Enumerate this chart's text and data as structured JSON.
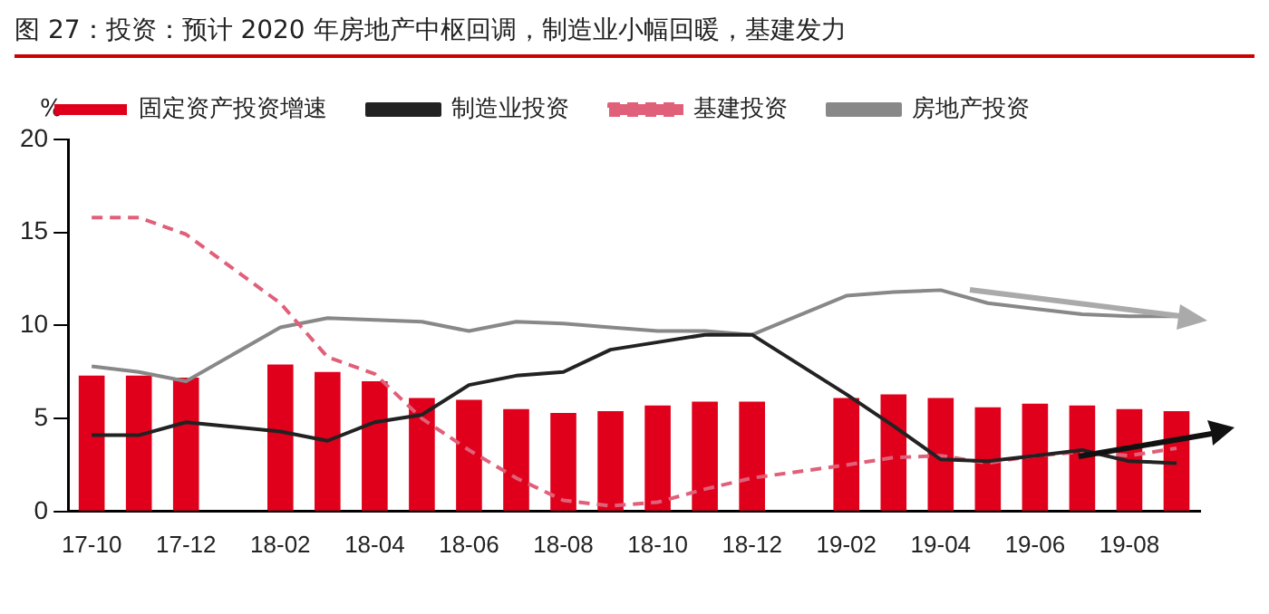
{
  "chart_data": {
    "type": "bar",
    "title": "图 27：投资：预计 2020 年房地产中枢回调，制造业小幅回暖，基建发力",
    "ylabel": "%",
    "categories": [
      "17-10",
      null,
      "17-12",
      null,
      "18-02",
      null,
      "18-04",
      null,
      "18-06",
      null,
      "18-08",
      null,
      "18-10",
      null,
      "18-12",
      null,
      "19-02",
      null,
      "19-04",
      null,
      "19-06",
      null,
      "19-08",
      null
    ],
    "series": [
      {
        "name": "固定资产投资增速",
        "color": "#e0001b",
        "values": [
          7.3,
          7.3,
          7.2,
          null,
          7.9,
          7.5,
          7.0,
          6.1,
          6.0,
          5.5,
          5.3,
          5.4,
          5.7,
          5.9,
          5.9,
          null,
          6.1,
          6.3,
          6.1,
          5.6,
          5.8,
          5.7,
          5.5,
          5.4
        ]
      },
      {
        "name": "制造业投资",
        "type": "line",
        "color": "#222222",
        "line_style": "solid",
        "values": [
          4.1,
          4.1,
          4.8,
          null,
          4.3,
          3.8,
          4.8,
          5.2,
          6.8,
          7.3,
          7.5,
          8.7,
          9.1,
          9.5,
          9.5,
          null,
          6.3,
          4.6,
          2.8,
          2.7,
          3.0,
          3.3,
          2.7,
          2.6
        ]
      },
      {
        "name": "基建投资",
        "type": "line",
        "color": "#e0607a",
        "line_style": "dashed",
        "values": [
          15.8,
          15.8,
          14.9,
          null,
          11.2,
          8.3,
          7.4,
          5.0,
          3.3,
          1.8,
          0.6,
          0.3,
          0.5,
          1.2,
          1.8,
          null,
          2.5,
          2.9,
          3.0,
          2.6,
          3.0,
          3.2,
          3.0,
          3.4
        ]
      },
      {
        "name": "房地产投资",
        "type": "line",
        "color": "#888888",
        "line_style": "solid",
        "values": [
          7.8,
          7.5,
          7.0,
          null,
          9.9,
          10.4,
          10.3,
          10.2,
          9.7,
          10.2,
          10.1,
          9.9,
          9.7,
          9.7,
          9.5,
          null,
          11.6,
          11.8,
          11.9,
          11.2,
          10.9,
          10.6,
          10.5,
          10.5
        ]
      }
    ],
    "ylim": [
      0,
      20
    ],
    "yticks": [
      0,
      5,
      10,
      15,
      20
    ],
    "grid": false,
    "legend": "top",
    "marker": "none"
  }
}
